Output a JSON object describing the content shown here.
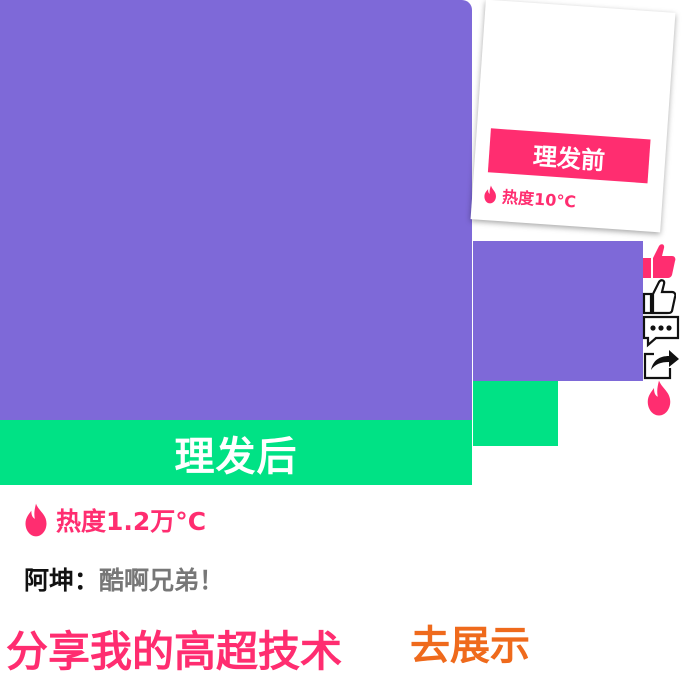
{
  "after": {
    "banner_label": "理发后",
    "heat_text": "热度1.2万°C"
  },
  "before": {
    "banner_label": "理发前",
    "heat_text": "热度10°C"
  },
  "comment": {
    "author": "阿坤：",
    "text": "酷啊兄弟！"
  },
  "cta": {
    "text": "分享我的高超技术",
    "link_label": "去展示"
  },
  "actions": {
    "icons": [
      "thumbs-up-filled-icon",
      "thumbs-up-outline-icon",
      "comment-icon",
      "share-icon",
      "flame-icon"
    ]
  },
  "colors": {
    "purple": "#7e69d8",
    "green": "#00e285",
    "pink": "#ff2d70",
    "orange": "#ef6a1c"
  }
}
